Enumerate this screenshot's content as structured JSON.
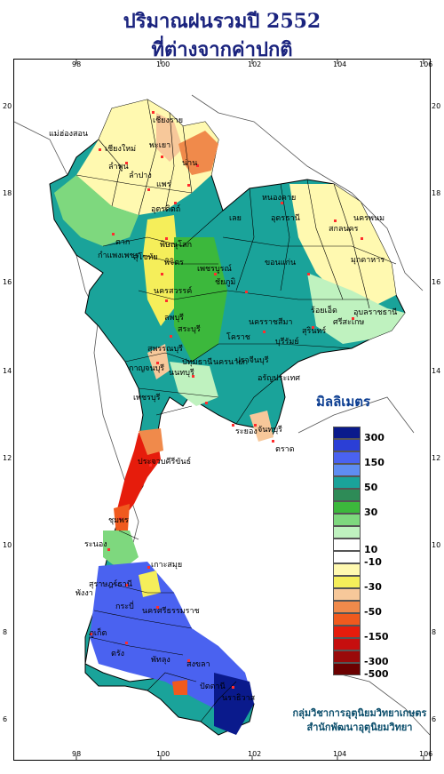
{
  "title": {
    "line1": "ปริมาณฝนรวมปี  2552",
    "line2": "ที่ต่างจากค่าปกติ"
  },
  "axes": {
    "lon_ticks": [
      "98",
      "100",
      "102",
      "104",
      "106"
    ],
    "lat_ticks": [
      "20",
      "18",
      "16",
      "14",
      "12",
      "10",
      "8",
      "6"
    ]
  },
  "legend": {
    "title": "มิลลิเมตร",
    "items": [
      {
        "label": "300",
        "color": "#0a1a8c"
      },
      {
        "label": "",
        "color": "#2b3fd6"
      },
      {
        "label": "150",
        "color": "#4a62f0"
      },
      {
        "label": "",
        "color": "#5f8df2"
      },
      {
        "label": "50",
        "color": "#1aa39a"
      },
      {
        "label": "",
        "color": "#2e8b57"
      },
      {
        "label": "30",
        "color": "#3cb83c"
      },
      {
        "label": "",
        "color": "#7ed87e"
      },
      {
        "label": "",
        "color": "#bff2bf"
      },
      {
        "label": "10",
        "color": "#ffffff"
      },
      {
        "label": "-10",
        "color": "#ffffff"
      },
      {
        "label": "",
        "color": "#fff9b0"
      },
      {
        "label": "-30",
        "color": "#f5ee5a"
      },
      {
        "label": "",
        "color": "#f7c89a"
      },
      {
        "label": "-50",
        "color": "#f08a4b"
      },
      {
        "label": "",
        "color": "#f05a1e"
      },
      {
        "label": "-150",
        "color": "#e61c0c"
      },
      {
        "label": "",
        "color": "#c60e0e"
      },
      {
        "label": "-300",
        "color": "#9a0a0a"
      },
      {
        "label": "-500",
        "color": "#6b0000"
      }
    ]
  },
  "places": [
    "เชียงราย",
    "แม่ฮ่องสอน",
    "เชียงใหม่",
    "ลำพูน",
    "พะเยา",
    "น่าน",
    "ลำปาง",
    "แพร่",
    "อุตรดิตถ์",
    "ตาก",
    "สุโขทัย",
    "พิษณุโลก",
    "กำแพงเพชร",
    "พิจิตร",
    "เพชรบูรณ์",
    "นครสวรรค์",
    "หนองคาย",
    "อุดรธานี",
    "เลย",
    "สกลนคร",
    "นครพนม",
    "มุกดาหาร",
    "ขอนแก่น",
    "ชัยภูมิ",
    "ร้อยเอ็ด",
    "อุบลราชธานี",
    "ศรีสะเกษ",
    "สุรินทร์",
    "นครราชสีมา",
    "บุรีรัมย์",
    "ลพบุรี",
    "สระบุรี",
    "โคราช",
    "นครนายก",
    "ปทุมธานี",
    "สุพรรณบุรี",
    "กาญจนบุรี",
    "นนทบุรี",
    "ปราจีนบุรี",
    "อรัญประเทศ",
    "เพชรบุรี",
    "ระยอง",
    "จันทบุรี",
    "ตราด",
    "ประจวบคีรีขันธ์",
    "ชุมพร",
    "ระนอง",
    "เกาะสมุย",
    "สุราษฎร์ธานี",
    "พังงา",
    "กระบี่",
    "นครศรีธรรมราช",
    "ภูเก็ต",
    "ตรัง",
    "พัทลุง",
    "สงขลา",
    "ปัตตานี",
    "นราธิวาส"
  ],
  "credit": {
    "line1": "กลุ่มวิชาการอุตุนิยมวิทยาเกษตร",
    "line2": "สำนักพัฒนาอุตุนิยมวิทยา"
  }
}
